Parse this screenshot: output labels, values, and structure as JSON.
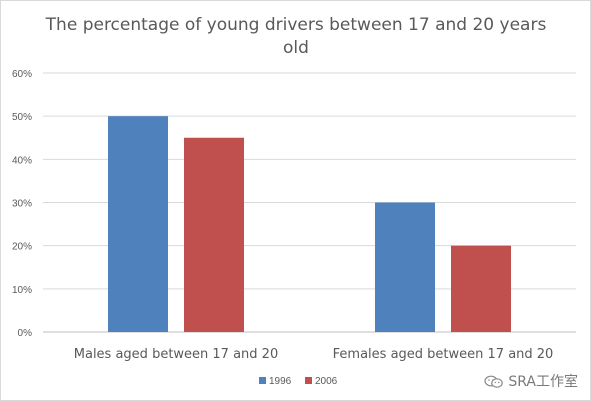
{
  "chart_data": {
    "type": "bar",
    "title": "The percentage of young drivers between 17 and 20 years old",
    "title_lines": [
      "The percentage of young drivers between 17 and 20 years",
      "old"
    ],
    "categories": [
      "Males aged between 17 and 20",
      "Females aged between 17 and 20"
    ],
    "series": [
      {
        "name": "1996",
        "values": [
          50,
          30
        ],
        "color": "#4f81bd"
      },
      {
        "name": "2006",
        "values": [
          45,
          20
        ],
        "color": "#c0504d"
      }
    ],
    "xlabel": "",
    "ylabel": "",
    "ylim": [
      0,
      60
    ],
    "yticks": [
      0,
      10,
      20,
      30,
      40,
      50,
      60
    ],
    "ytick_labels": [
      "0%",
      "10%",
      "20%",
      "30%",
      "40%",
      "50%",
      "60%"
    ],
    "grid": true,
    "legend_position": "bottom"
  },
  "watermark": {
    "text": "SRA工作室",
    "icon": "wechat-icon"
  }
}
